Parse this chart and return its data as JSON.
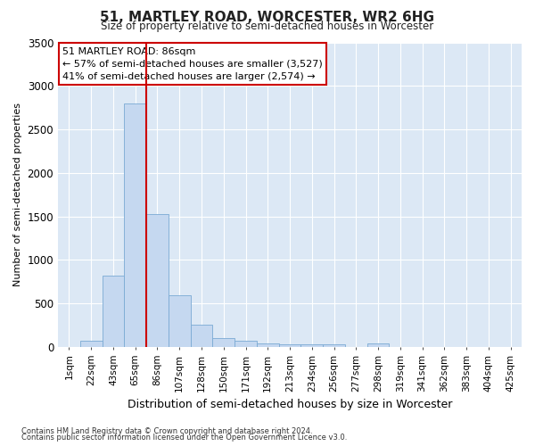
{
  "title": "51, MARTLEY ROAD, WORCESTER, WR2 6HG",
  "subtitle": "Size of property relative to semi-detached houses in Worcester",
  "xlabel": "Distribution of semi-detached houses by size in Worcester",
  "ylabel": "Number of semi-detached properties",
  "footer1": "Contains HM Land Registry data © Crown copyright and database right 2024.",
  "footer2": "Contains public sector information licensed under the Open Government Licence v3.0.",
  "annotation_title": "51 MARTLEY ROAD: 86sqm",
  "annotation_line1": "← 57% of semi-detached houses are smaller (3,527)",
  "annotation_line2": "41% of semi-detached houses are larger (2,574) →",
  "categories": [
    "1sqm",
    "22sqm",
    "43sqm",
    "65sqm",
    "86sqm",
    "107sqm",
    "128sqm",
    "150sqm",
    "171sqm",
    "192sqm",
    "213sqm",
    "234sqm",
    "256sqm",
    "277sqm",
    "298sqm",
    "319sqm",
    "341sqm",
    "362sqm",
    "383sqm",
    "404sqm",
    "425sqm"
  ],
  "values": [
    0,
    75,
    820,
    2800,
    1530,
    590,
    260,
    105,
    75,
    40,
    30,
    25,
    30,
    0,
    35,
    0,
    0,
    0,
    0,
    0,
    0
  ],
  "bar_color": "#c5d8f0",
  "bar_edge_color": "#7aaad4",
  "redline_color": "#cc0000",
  "annotation_box_color": "#ffffff",
  "annotation_box_edge": "#cc0000",
  "bg_color": "#dce8f5",
  "grid_color": "#ffffff",
  "fig_bg": "#ffffff",
  "ylim": [
    0,
    3500
  ],
  "yticks": [
    0,
    500,
    1000,
    1500,
    2000,
    2500,
    3000,
    3500
  ],
  "redline_index": 4
}
